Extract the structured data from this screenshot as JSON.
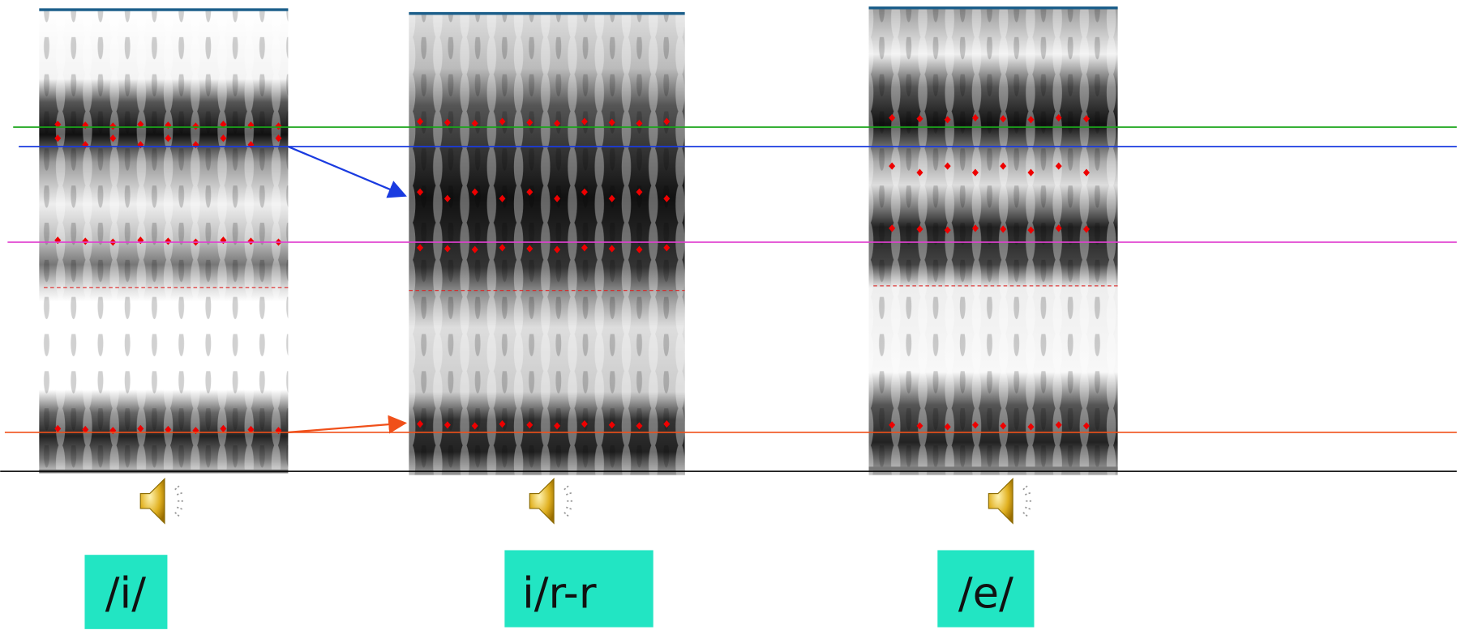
{
  "panels": [
    {
      "label": "/i/"
    },
    {
      "label": "i/r-r"
    },
    {
      "label": "/e/"
    }
  ]
}
